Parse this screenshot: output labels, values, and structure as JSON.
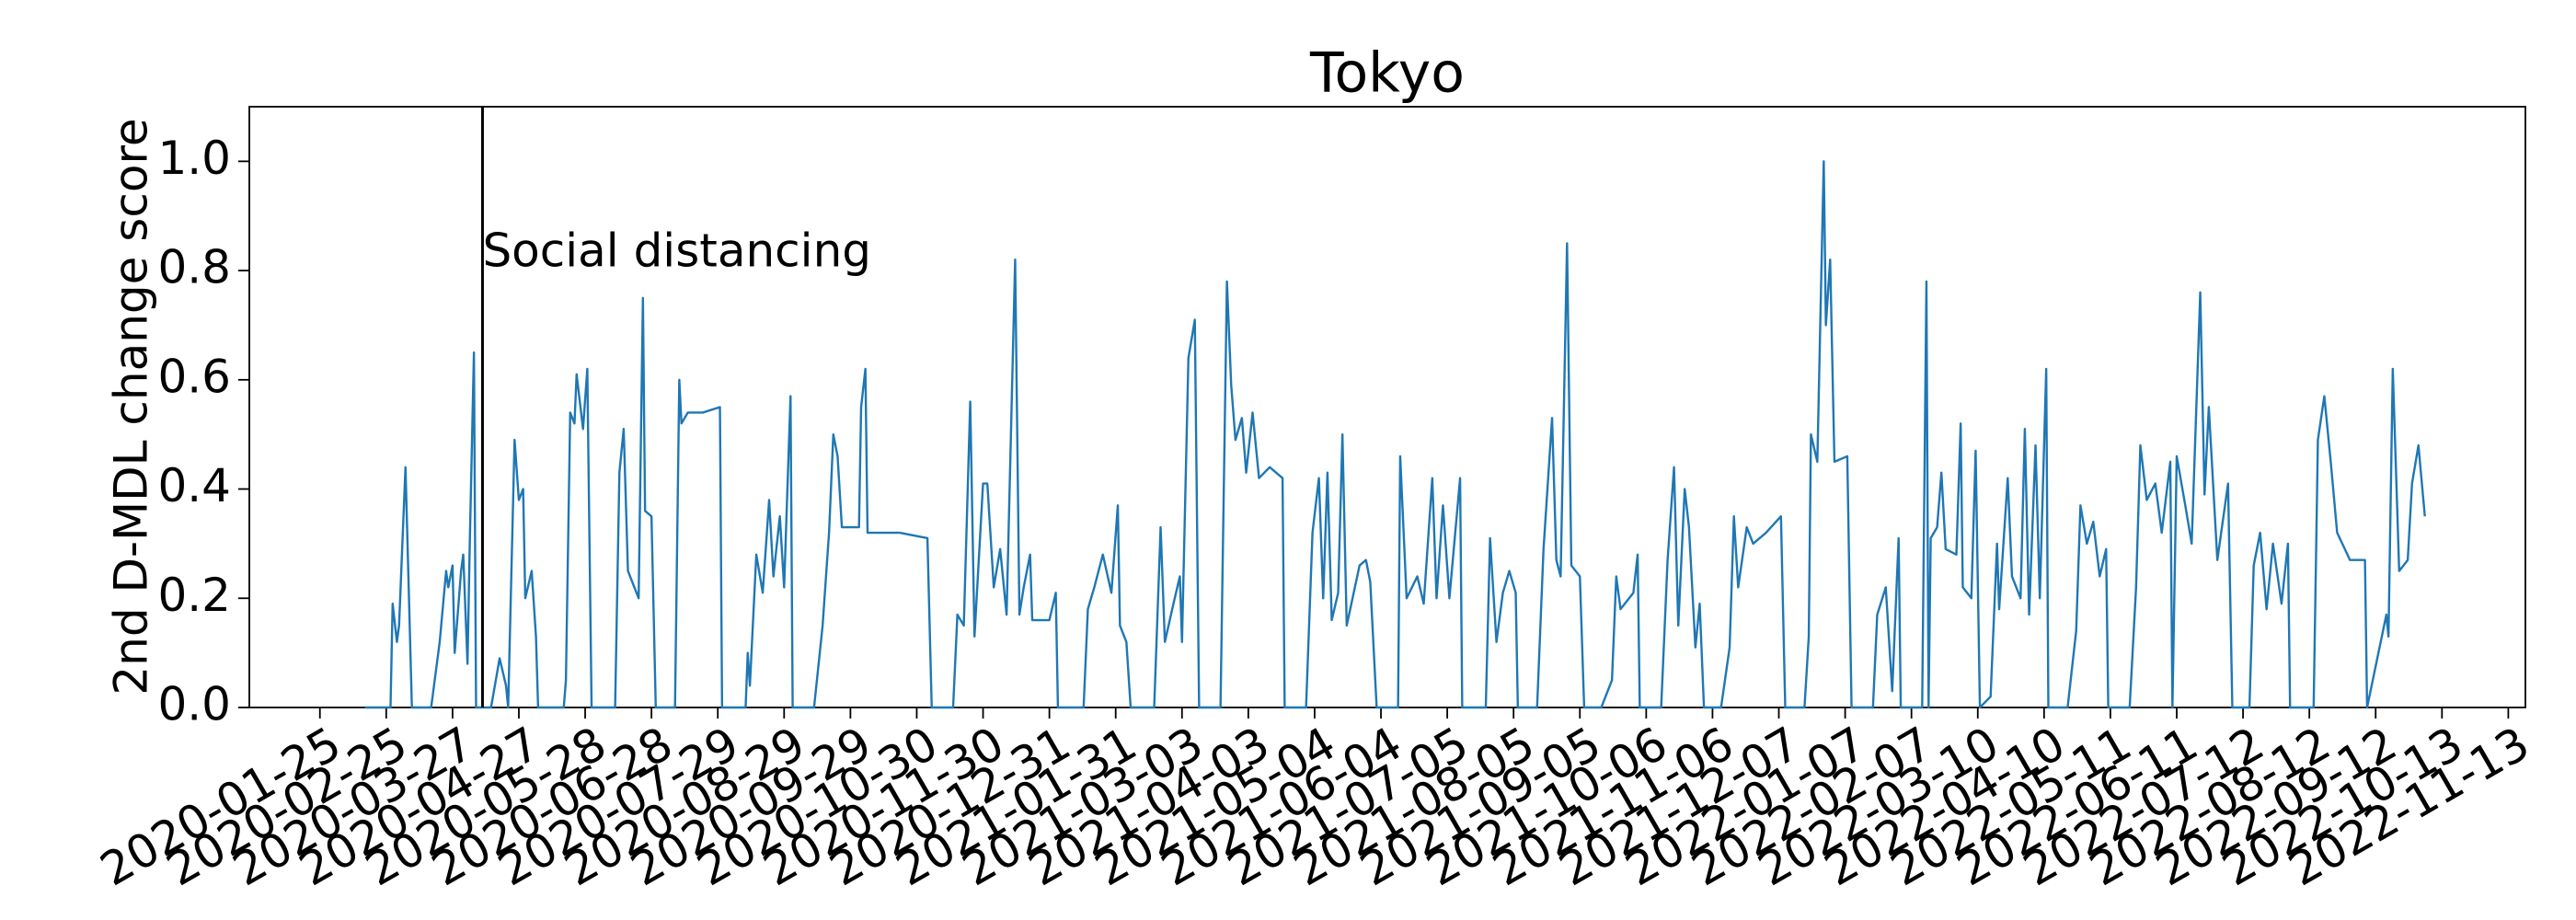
{
  "chart_data": {
    "type": "line",
    "title": "Tokyo",
    "ylabel": "2nd D-MDL change score",
    "color": "#1f77b4",
    "ylim": [
      0,
      1.1
    ],
    "yticks": [
      {
        "value": 0,
        "label": "0.0"
      },
      0.2,
      0.4,
      0.6,
      0.8,
      {
        "value": 1,
        "label": "1.0"
      }
    ],
    "xlim": [
      "2019-12-23",
      "2022-11-21"
    ],
    "xticks": [
      "2020-01-25",
      "2020-02-25",
      "2020-03-27",
      "2020-04-27",
      "2020-05-28",
      "2020-06-28",
      "2020-07-29",
      "2020-08-29",
      "2020-09-29",
      "2020-10-30",
      "2020-11-30",
      "2020-12-31",
      "2021-01-31",
      "2021-03-03",
      "2021-04-03",
      "2021-05-04",
      "2021-06-04",
      "2021-07-05",
      "2021-08-05",
      "2021-09-05",
      "2021-10-06",
      "2021-11-06",
      "2021-12-07",
      "2022-01-07",
      "2022-02-07",
      "2022-03-10",
      "2022-04-10",
      "2022-05-11",
      "2022-06-11",
      "2022-07-12",
      "2022-08-12",
      "2022-09-12",
      "2022-10-13",
      "2022-11-13"
    ],
    "annotation": {
      "text": "Social distancing",
      "x": "2020-04-10"
    },
    "x": [
      "2020-02-15",
      "2020-02-27",
      "2020-02-28",
      "2020-03-01",
      "2020-03-02",
      "2020-03-05",
      "2020-03-08",
      "2020-03-17",
      "2020-03-21",
      "2020-03-24",
      "2020-03-25",
      "2020-03-27",
      "2020-03-28",
      "2020-03-31",
      "2020-04-01",
      "2020-04-03",
      "2020-04-04",
      "2020-04-06",
      "2020-04-07",
      "2020-04-14",
      "2020-04-18",
      "2020-04-21",
      "2020-04-22",
      "2020-04-25",
      "2020-04-27",
      "2020-04-29",
      "2020-04-30",
      "2020-05-03",
      "2020-05-05",
      "2020-05-06",
      "2020-05-18",
      "2020-05-19",
      "2020-05-21",
      "2020-05-23",
      "2020-05-24",
      "2020-05-27",
      "2020-05-29",
      "2020-05-31",
      "2020-06-11",
      "2020-06-13",
      "2020-06-15",
      "2020-06-17",
      "2020-06-22",
      "2020-06-24",
      "2020-06-25",
      "2020-06-28",
      "2020-06-30",
      "2020-07-09",
      "2020-07-11",
      "2020-07-12",
      "2020-07-15",
      "2020-07-22",
      "2020-07-30",
      "2020-07-31",
      "2020-08-11",
      "2020-08-12",
      "2020-08-13",
      "2020-08-16",
      "2020-08-19",
      "2020-08-22",
      "2020-08-24",
      "2020-08-27",
      "2020-08-29",
      "2020-09-01",
      "2020-09-02",
      "2020-09-12",
      "2020-09-16",
      "2020-09-19",
      "2020-09-21",
      "2020-09-23",
      "2020-09-25",
      "2020-10-03",
      "2020-10-04",
      "2020-10-06",
      "2020-10-07",
      "2020-10-22",
      "2020-11-04",
      "2020-11-06",
      "2020-11-16",
      "2020-11-18",
      "2020-11-21",
      "2020-11-24",
      "2020-11-26",
      "2020-11-30",
      "2020-12-02",
      "2020-12-05",
      "2020-12-08",
      "2020-12-11",
      "2020-12-15",
      "2020-12-17",
      "2020-12-19",
      "2020-12-22",
      "2020-12-23",
      "2020-12-31",
      "2021-01-03",
      "2021-01-04",
      "2021-01-16",
      "2021-01-18",
      "2021-01-21",
      "2021-01-25",
      "2021-01-29",
      "2021-02-01",
      "2021-02-02",
      "2021-02-05",
      "2021-02-07",
      "2021-02-18",
      "2021-02-21",
      "2021-02-23",
      "2021-02-27",
      "2021-03-02",
      "2021-03-03",
      "2021-03-06",
      "2021-03-09",
      "2021-03-11",
      "2021-03-21",
      "2021-03-24",
      "2021-03-26",
      "2021-03-28",
      "2021-03-31",
      "2021-04-02",
      "2021-04-05",
      "2021-04-08",
      "2021-04-13",
      "2021-04-19",
      "2021-04-20",
      "2021-04-30",
      "2021-05-03",
      "2021-05-06",
      "2021-05-08",
      "2021-05-10",
      "2021-05-12",
      "2021-05-15",
      "2021-05-17",
      "2021-05-19",
      "2021-05-25",
      "2021-05-28",
      "2021-05-30",
      "2021-06-02",
      "2021-06-12",
      "2021-06-13",
      "2021-06-16",
      "2021-06-21",
      "2021-06-24",
      "2021-06-28",
      "2021-06-30",
      "2021-07-03",
      "2021-07-06",
      "2021-07-11",
      "2021-07-12",
      "2021-07-23",
      "2021-07-25",
      "2021-07-28",
      "2021-07-31",
      "2021-08-03",
      "2021-08-06",
      "2021-08-07",
      "2021-08-16",
      "2021-08-19",
      "2021-08-23",
      "2021-08-25",
      "2021-08-27",
      "2021-08-30",
      "2021-09-01",
      "2021-09-05",
      "2021-09-07",
      "2021-09-15",
      "2021-09-20",
      "2021-09-22",
      "2021-09-24",
      "2021-09-30",
      "2021-10-02",
      "2021-10-03",
      "2021-10-13",
      "2021-10-16",
      "2021-10-19",
      "2021-10-21",
      "2021-10-24",
      "2021-10-26",
      "2021-10-29",
      "2021-10-31",
      "2021-11-02",
      "2021-11-10",
      "2021-11-14",
      "2021-11-16",
      "2021-11-18",
      "2021-11-22",
      "2021-11-25",
      "2021-12-01",
      "2021-12-08",
      "2021-12-10",
      "2021-12-19",
      "2021-12-21",
      "2021-12-22",
      "2021-12-25",
      "2021-12-28",
      "2021-12-29",
      "2021-12-31",
      "2022-01-02",
      "2022-01-08",
      "2022-01-10",
      "2022-01-20",
      "2022-01-22",
      "2022-01-26",
      "2022-01-29",
      "2022-02-01",
      "2022-02-02",
      "2022-02-12",
      "2022-02-14",
      "2022-02-15",
      "2022-02-16",
      "2022-02-19",
      "2022-02-21",
      "2022-02-23",
      "2022-02-28",
      "2022-03-02",
      "2022-03-03",
      "2022-03-07",
      "2022-03-09",
      "2022-03-11",
      "2022-03-16",
      "2022-03-19",
      "2022-03-20",
      "2022-03-24",
      "2022-03-26",
      "2022-03-30",
      "2022-04-01",
      "2022-04-03",
      "2022-04-06",
      "2022-04-08",
      "2022-04-11",
      "2022-04-12",
      "2022-04-21",
      "2022-04-25",
      "2022-04-27",
      "2022-04-30",
      "2022-05-03",
      "2022-05-06",
      "2022-05-09",
      "2022-05-10",
      "2022-05-20",
      "2022-05-23",
      "2022-05-25",
      "2022-05-28",
      "2022-06-01",
      "2022-06-04",
      "2022-06-08",
      "2022-06-09",
      "2022-06-11",
      "2022-06-15",
      "2022-06-18",
      "2022-06-22",
      "2022-06-24",
      "2022-06-26",
      "2022-06-30",
      "2022-07-05",
      "2022-07-07",
      "2022-07-15",
      "2022-07-17",
      "2022-07-20",
      "2022-07-23",
      "2022-07-26",
      "2022-07-30",
      "2022-08-02",
      "2022-08-03",
      "2022-08-14",
      "2022-08-16",
      "2022-08-19",
      "2022-08-22",
      "2022-08-25",
      "2022-08-31",
      "2022-09-07",
      "2022-09-08",
      "2022-09-17",
      "2022-09-18",
      "2022-09-20",
      "2022-09-23",
      "2022-09-27",
      "2022-09-29",
      "2022-10-02",
      "2022-10-05"
    ],
    "values": [
      0,
      0,
      0.19,
      0.12,
      0.15,
      0.44,
      0,
      0,
      0.12,
      0.25,
      0.22,
      0.26,
      0.1,
      0.25,
      0.28,
      0.08,
      0.29,
      0.65,
      0,
      0,
      0.09,
      0.04,
      0,
      0.49,
      0.38,
      0.4,
      0.2,
      0.25,
      0.13,
      0,
      0,
      0.05,
      0.54,
      0.52,
      0.61,
      0.51,
      0.62,
      0,
      0,
      0.43,
      0.51,
      0.25,
      0.2,
      0.75,
      0.36,
      0.35,
      0,
      0,
      0.6,
      0.52,
      0.54,
      0.54,
      0.55,
      0,
      0,
      0.1,
      0.04,
      0.28,
      0.21,
      0.38,
      0.24,
      0.35,
      0.22,
      0.57,
      0,
      0,
      0.15,
      0.32,
      0.5,
      0.46,
      0.33,
      0.33,
      0.55,
      0.62,
      0.32,
      0.32,
      0.31,
      0,
      0,
      0.17,
      0.15,
      0.56,
      0.13,
      0.41,
      0.41,
      0.22,
      0.29,
      0.17,
      0.82,
      0.17,
      0.22,
      0.28,
      0.16,
      0.16,
      0.21,
      0,
      0,
      0.18,
      0.22,
      0.28,
      0.21,
      0.37,
      0.15,
      0.12,
      0,
      0,
      0.33,
      0.12,
      0.19,
      0.24,
      0.12,
      0.64,
      0.71,
      0,
      0,
      0.78,
      0.59,
      0.49,
      0.53,
      0.43,
      0.54,
      0.42,
      0.44,
      0.42,
      0,
      0,
      0.32,
      0.42,
      0.2,
      0.43,
      0.16,
      0.21,
      0.5,
      0.15,
      0.26,
      0.27,
      0.23,
      0,
      0,
      0.46,
      0.2,
      0.24,
      0.19,
      0.42,
      0.2,
      0.37,
      0.2,
      0.42,
      0,
      0,
      0.31,
      0.12,
      0.21,
      0.25,
      0.21,
      0,
      0,
      0.29,
      0.53,
      0.27,
      0.24,
      0.85,
      0.26,
      0.24,
      0,
      0,
      0.05,
      0.24,
      0.18,
      0.21,
      0.28,
      0,
      0,
      0.27,
      0.44,
      0.15,
      0.4,
      0.33,
      0.11,
      0.19,
      0,
      0,
      0.11,
      0.35,
      0.22,
      0.33,
      0.3,
      0.32,
      0.35,
      0,
      0,
      0.13,
      0.5,
      0.45,
      1.0,
      0.7,
      0.82,
      0.45,
      0.46,
      0,
      0,
      0.17,
      0.22,
      0.03,
      0.31,
      0,
      0,
      0.78,
      0,
      0.31,
      0.33,
      0.43,
      0.29,
      0.28,
      0.52,
      0.22,
      0.2,
      0.47,
      0,
      0.02,
      0.3,
      0.18,
      0.42,
      0.24,
      0.2,
      0.51,
      0.17,
      0.48,
      0.2,
      0.62,
      0,
      0,
      0.14,
      0.37,
      0.3,
      0.34,
      0.24,
      0.29,
      0,
      0,
      0.22,
      0.48,
      0.38,
      0.41,
      0.32,
      0.45,
      0,
      0.46,
      0.37,
      0.3,
      0.76,
      0.39,
      0.55,
      0.27,
      0.41,
      0,
      0,
      0.26,
      0.32,
      0.18,
      0.3,
      0.19,
      0.3,
      0,
      0,
      0.49,
      0.57,
      0.45,
      0.32,
      0.27,
      0.27,
      0,
      0.17,
      0.13,
      0.62,
      0.25,
      0.27,
      0.41,
      0.48,
      0.35
    ]
  }
}
